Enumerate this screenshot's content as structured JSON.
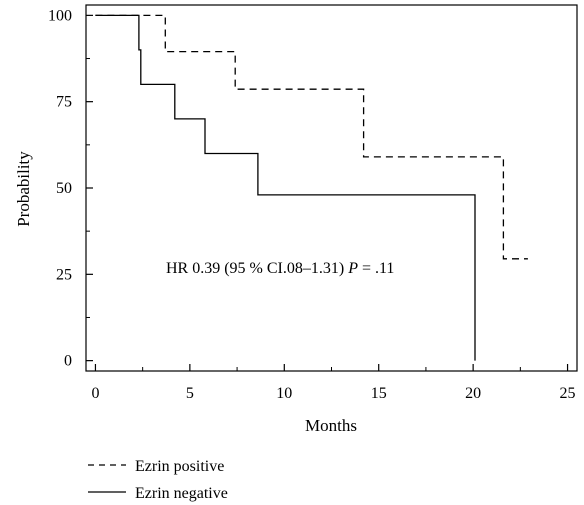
{
  "chart_data": {
    "type": "line",
    "subtype": "kaplan-meier step plot",
    "title": "",
    "xlabel": "Months",
    "ylabel": "Probability",
    "xlim": [
      -0.5,
      25.5
    ],
    "ylim": [
      -3,
      103
    ],
    "x_ticks": [
      0,
      5,
      10,
      15,
      20,
      25
    ],
    "x_tick_labels": [
      "0",
      "5",
      "10",
      "15",
      "20",
      "25"
    ],
    "y_ticks": [
      0,
      25,
      50,
      75,
      100
    ],
    "y_tick_labels": [
      "0",
      "25",
      "50",
      "75",
      "100"
    ],
    "grid": false,
    "legend_position": "bottom-left, below plot",
    "annotation": {
      "prefix": "HR 0.39 (95 % CI.08–1.31) ",
      "p_symbol": "P",
      "suffix": " = .11"
    },
    "series": [
      {
        "name": "Ezrin positive",
        "line_style": "dashed",
        "color": "#000000",
        "x": [
          0,
          3.7,
          3.7,
          7.4,
          7.4,
          14.2,
          14.2,
          21.6,
          21.6,
          22.9
        ],
        "y": [
          100,
          100,
          89.5,
          89.5,
          78.6,
          78.6,
          59.0,
          59.0,
          29.5,
          29.5
        ]
      },
      {
        "name": "Ezrin negative",
        "line_style": "solid",
        "color": "#000000",
        "x": [
          0,
          2.3,
          2.3,
          2.4,
          2.4,
          4.2,
          4.2,
          5.8,
          5.8,
          8.6,
          8.6,
          20.1,
          20.1
        ],
        "y": [
          100,
          100,
          90.0,
          90.0,
          80.0,
          80.0,
          70.0,
          70.0,
          60.0,
          60.0,
          48.0,
          48.0,
          0
        ]
      }
    ]
  }
}
